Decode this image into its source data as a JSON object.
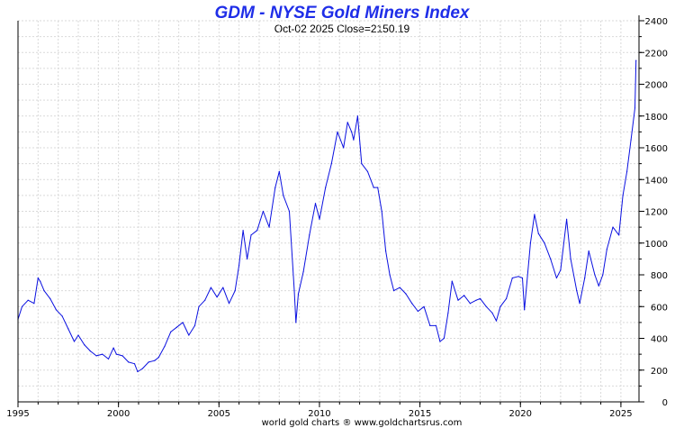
{
  "chart_data": {
    "type": "line",
    "title": "GDM - NYSE Gold Miners Index",
    "subtitle": "Oct-02  2025   Close=2150.19",
    "credit": "world gold charts ® www.goldchartsrus.com",
    "xlim": [
      1995.0,
      2025.9
    ],
    "ylim": [
      0,
      2400
    ],
    "x_ticks": [
      "1995",
      "2000",
      "2005",
      "2010",
      "2015",
      "2020",
      "2025"
    ],
    "y_ticks": [
      "0",
      "200",
      "400",
      "600",
      "800",
      "1000",
      "1200",
      "1400",
      "1600",
      "1800",
      "2000",
      "2200",
      "2400"
    ],
    "grid": true,
    "colors": {
      "series": "#0a10e0",
      "title": "#1f2ee8"
    },
    "series": [
      {
        "x": [
          1995.0,
          1995.2,
          1995.5,
          1995.8,
          1996.0,
          1996.1,
          1996.3,
          1996.6,
          1996.9,
          1997.2,
          1997.5,
          1997.8,
          1998.0,
          1998.3,
          1998.6,
          1998.9,
          1999.2,
          1999.5,
          1999.75,
          1999.9,
          2000.2,
          2000.5,
          2000.8,
          2000.95,
          2001.2,
          2001.5,
          2001.8,
          2002.0,
          2002.3,
          2002.6,
          2002.9,
          2003.2,
          2003.5,
          2003.8,
          2004.0,
          2004.3,
          2004.6,
          2004.9,
          2005.2,
          2005.5,
          2005.8,
          2006.0,
          2006.2,
          2006.4,
          2006.6,
          2006.9,
          2007.2,
          2007.5,
          2007.8,
          2008.0,
          2008.2,
          2008.5,
          2008.75,
          2008.83,
          2008.95,
          2009.2,
          2009.5,
          2009.8,
          2010.0,
          2010.3,
          2010.6,
          2010.9,
          2011.2,
          2011.4,
          2011.6,
          2011.7,
          2011.9,
          2012.1,
          2012.4,
          2012.7,
          2012.9,
          2013.1,
          2013.3,
          2013.5,
          2013.7,
          2014.0,
          2014.3,
          2014.6,
          2014.9,
          2015.2,
          2015.5,
          2015.8,
          2016.0,
          2016.2,
          2016.4,
          2016.6,
          2016.9,
          2017.2,
          2017.5,
          2017.8,
          2018.0,
          2018.3,
          2018.6,
          2018.8,
          2019.0,
          2019.3,
          2019.6,
          2019.9,
          2020.1,
          2020.2,
          2020.5,
          2020.7,
          2020.9,
          2021.2,
          2021.5,
          2021.8,
          2022.0,
          2022.3,
          2022.5,
          2022.8,
          2022.95,
          2023.2,
          2023.4,
          2023.7,
          2023.9,
          2024.1,
          2024.3,
          2024.6,
          2024.9,
          2025.1,
          2025.3,
          2025.5,
          2025.7,
          2025.75
        ],
        "y": [
          520,
          600,
          640,
          620,
          780,
          760,
          700,
          650,
          580,
          540,
          460,
          380,
          420,
          360,
          320,
          290,
          300,
          270,
          340,
          300,
          290,
          250,
          240,
          190,
          210,
          250,
          260,
          280,
          350,
          440,
          470,
          500,
          420,
          480,
          600,
          640,
          720,
          660,
          720,
          620,
          700,
          860,
          1080,
          900,
          1050,
          1080,
          1200,
          1100,
          1350,
          1450,
          1300,
          1200,
          700,
          500,
          680,
          820,
          1050,
          1250,
          1150,
          1350,
          1500,
          1700,
          1600,
          1760,
          1700,
          1650,
          1800,
          1500,
          1450,
          1350,
          1350,
          1200,
          950,
          800,
          700,
          720,
          680,
          620,
          570,
          600,
          480,
          480,
          380,
          400,
          560,
          760,
          640,
          670,
          620,
          640,
          650,
          600,
          560,
          510,
          600,
          650,
          780,
          790,
          780,
          580,
          1000,
          1180,
          1060,
          1000,
          900,
          780,
          830,
          1150,
          900,
          700,
          620,
          780,
          950,
          800,
          730,
          800,
          960,
          1100,
          1050,
          1300,
          1450,
          1650,
          1850,
          2150
        ]
      }
    ]
  }
}
